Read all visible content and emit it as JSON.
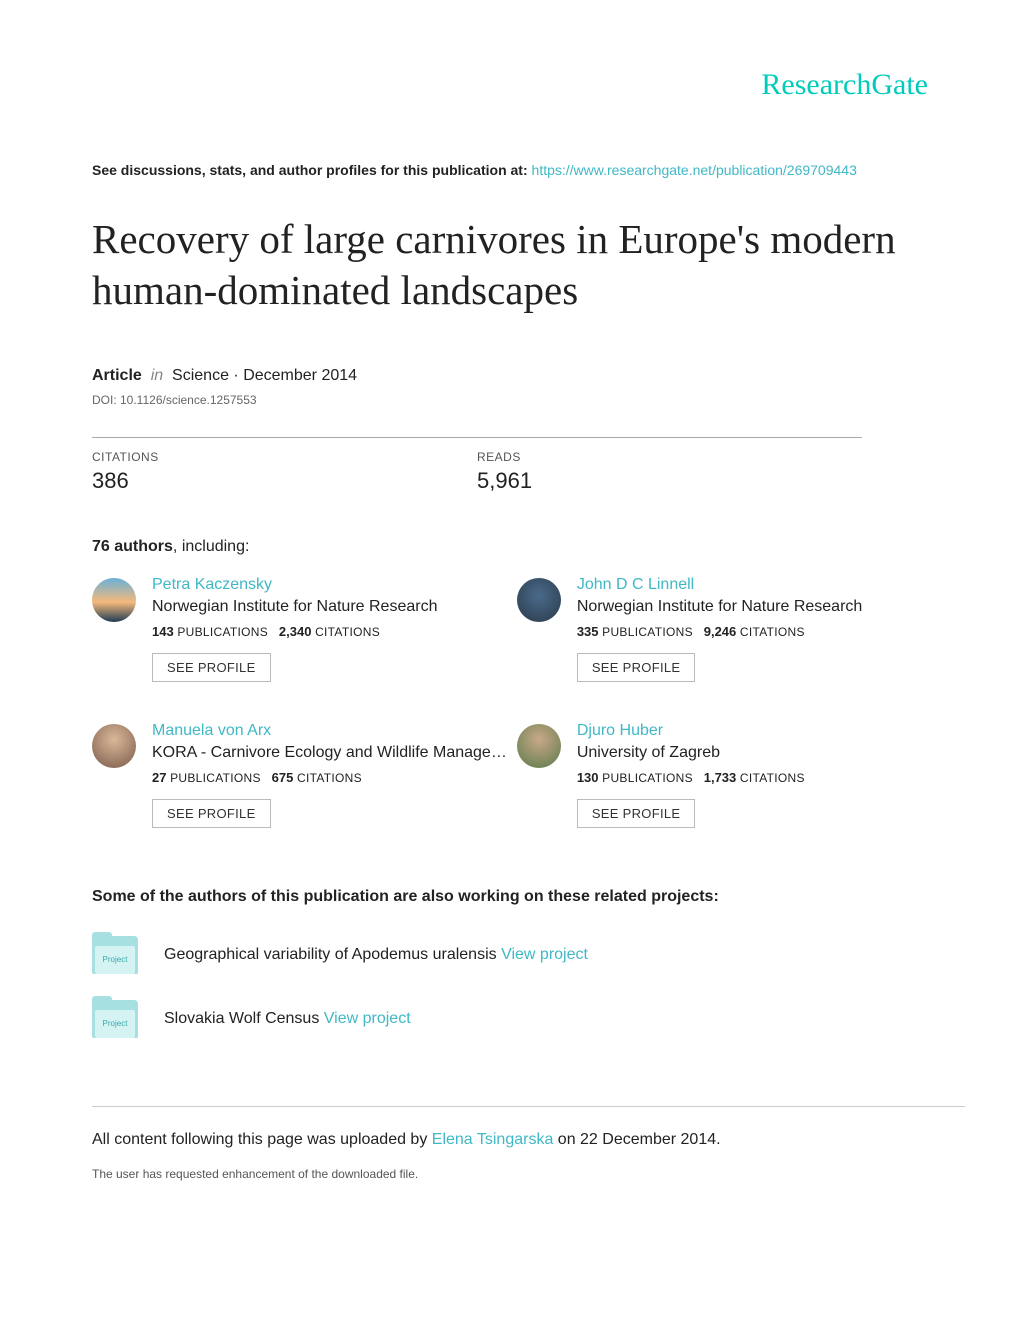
{
  "logo": {
    "text": "ResearchGate",
    "color": "#00ccbb"
  },
  "intro": {
    "prefix": "See discussions, stats, and author profiles for this publication at: ",
    "link_text": "https://www.researchgate.net/publication/269709443"
  },
  "title": "Recovery of large carnivores in Europe's modern human-dominated landscapes",
  "meta": {
    "type_label": "Article",
    "in_word": "in",
    "journal_date": "Science · December 2014",
    "doi": "DOI: 10.1126/science.1257553"
  },
  "stats": {
    "citations_label": "CITATIONS",
    "citations_value": "386",
    "reads_label": "READS",
    "reads_value": "5,961"
  },
  "authors_header": {
    "count": "76 authors",
    "suffix": ", including:"
  },
  "authors": [
    {
      "name": "Petra Kaczensky",
      "affiliation": "Norwegian Institute for Nature Research",
      "pubs": "143",
      "cites": "2,340",
      "avatar_bg": "linear-gradient(180deg,#6ab0d8 0%,#f4b97a 55%,#1e3b53 100%)"
    },
    {
      "name": "John D C Linnell",
      "affiliation": "Norwegian Institute for Nature Research",
      "pubs": "335",
      "cites": "9,246",
      "avatar_bg": "radial-gradient(circle at 50% 40%, #4a6a8a 0%, #2a3a4a 100%)"
    },
    {
      "name": "Manuela von Arx",
      "affiliation": "KORA - Carnivore Ecology and Wildlife Manage…",
      "pubs": "27",
      "cites": "675",
      "avatar_bg": "radial-gradient(circle at 50% 35%, #d9b899 0%, #7a5a4a 100%)"
    },
    {
      "name": "Djuro Huber",
      "affiliation": "University of Zagreb",
      "pubs": "130",
      "cites": "1,733",
      "avatar_bg": "radial-gradient(circle at 50% 35%, #c9a888 0%, #5a7a4a 100%)"
    }
  ],
  "pub_word": "PUBLICATIONS",
  "cite_word": "CITATIONS",
  "profile_btn_label": "SEE PROFILE",
  "projects_header": "Some of the authors of this publication are also working on these related projects:",
  "project_icon_label": "Project",
  "projects": [
    {
      "text": "Geographical variability of Apodemus uralensis ",
      "link": "View project"
    },
    {
      "text": "Slovakia Wolf Census ",
      "link": "View project"
    }
  ],
  "footer": {
    "line1_prefix": "All content following this page was uploaded by ",
    "uploader": "Elena Tsingarska",
    "line1_suffix": " on 22 December 2014.",
    "line2": "The user has requested enhancement of the downloaded file."
  }
}
